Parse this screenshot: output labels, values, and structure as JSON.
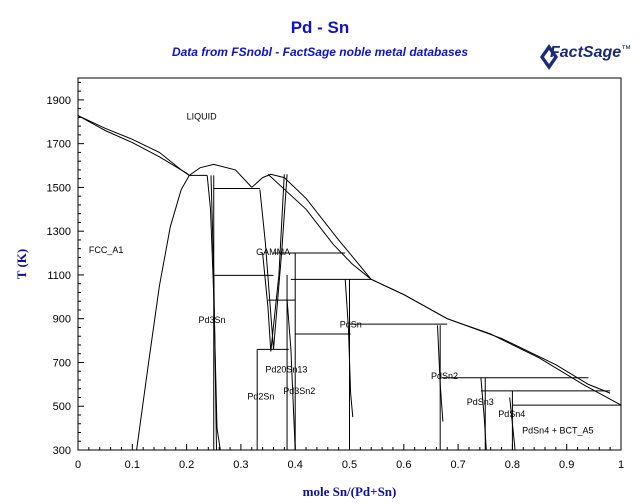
{
  "chart_data": {
    "type": "line",
    "title": "Pd - Sn",
    "subtitle": "Data from FSnobl - FactSage noble metal databases",
    "xlabel": "mole Sn/(Pd+Sn)",
    "ylabel": "T (K)",
    "xlim": [
      0,
      1
    ],
    "ylim": [
      300,
      2000
    ],
    "x_ticks": [
      "0",
      "0.1",
      "0.2",
      "0.3",
      "0.4",
      "0.5",
      "0.6",
      "0.7",
      "0.8",
      "0.9",
      "1"
    ],
    "y_ticks": [
      "300",
      "500",
      "700",
      "900",
      "1100",
      "1300",
      "1500",
      "1700",
      "1900"
    ],
    "grid": false,
    "regions": [
      {
        "label": "LIQUID",
        "x": 0.2,
        "y": 1810
      },
      {
        "label": "FCC_A1",
        "x": 0.02,
        "y": 1200
      },
      {
        "label": "GAMMA",
        "x": 0.328,
        "y": 1190
      },
      {
        "label": "Pd3Sn",
        "x": 0.222,
        "y": 880
      },
      {
        "label": "Pd20Sn13",
        "x": 0.345,
        "y": 655
      },
      {
        "label": "Pd2Sn",
        "x": 0.312,
        "y": 530
      },
      {
        "label": "Pd3Sn2",
        "x": 0.378,
        "y": 555
      },
      {
        "label": "PdSn",
        "x": 0.482,
        "y": 860
      },
      {
        "label": "PdSn2",
        "x": 0.65,
        "y": 625
      },
      {
        "label": "PdSn3",
        "x": 0.716,
        "y": 505
      },
      {
        "label": "PdSn4",
        "x": 0.774,
        "y": 450
      },
      {
        "label": "PdSn4 + BCT_A5",
        "x": 0.818,
        "y": 375
      }
    ],
    "curves": [
      {
        "x": [
          0,
          0.05,
          0.1,
          0.15,
          0.19,
          0.205
        ],
        "y": [
          1828,
          1770,
          1720,
          1660,
          1580,
          1555
        ]
      },
      {
        "x": [
          0,
          0.05,
          0.1,
          0.15,
          0.2,
          0.205
        ],
        "y": [
          1828,
          1760,
          1705,
          1640,
          1565,
          1555
        ]
      },
      {
        "x": [
          0.205,
          0.225,
          0.25,
          0.29,
          0.32
        ],
        "y": [
          1555,
          1590,
          1605,
          1580,
          1500
        ]
      },
      {
        "x": [
          0.32,
          0.34,
          0.355,
          0.38,
          0.42,
          0.48,
          0.54,
          0.6,
          0.68,
          0.76,
          0.85,
          0.93,
          1.0
        ],
        "y": [
          1500,
          1545,
          1560,
          1545,
          1450,
          1260,
          1080,
          1010,
          900,
          830,
          720,
          600,
          505
        ]
      },
      {
        "x": [
          0.108,
          0.13,
          0.15,
          0.17,
          0.19,
          0.205
        ],
        "y": [
          300,
          700,
          1050,
          1320,
          1490,
          1555
        ]
      },
      {
        "x": [
          0.238,
          0.244,
          0.25,
          0.256,
          0.262
        ],
        "y": [
          1555,
          1400,
          1000,
          400,
          300
        ]
      },
      {
        "x": [
          0.245,
          0.25,
          0.255
        ],
        "y": [
          1555,
          1100,
          300
        ]
      },
      {
        "x": [
          0.34,
          0.35,
          0.355,
          0.37,
          0.38
        ],
        "y": [
          1200,
          950,
          750,
          1100,
          1560
        ]
      },
      {
        "x": [
          0.335,
          0.345,
          0.36,
          0.375,
          0.385
        ],
        "y": [
          1490,
          1250,
          760,
          1200,
          1560
        ]
      },
      {
        "x": [
          0.385,
          0.392,
          0.4
        ],
        "y": [
          985,
          760,
          300
        ]
      },
      {
        "x": [
          0.492,
          0.498,
          0.502,
          0.506
        ],
        "y": [
          1080,
          860,
          560,
          450
        ]
      },
      {
        "x": [
          0.662,
          0.667,
          0.672
        ],
        "y": [
          870,
          600,
          430
        ]
      },
      {
        "x": [
          0.742,
          0.748,
          0.752
        ],
        "y": [
          630,
          450,
          300
        ]
      },
      {
        "x": [
          0.795,
          0.8,
          0.805
        ],
        "y": [
          540,
          420,
          300
        ]
      },
      {
        "x": [
          0.35,
          0.42,
          0.47,
          0.505,
          0.54
        ],
        "y": [
          1560,
          1400,
          1240,
          1150,
          1080
        ]
      },
      {
        "x": [
          0.54,
          0.6,
          0.68,
          0.78,
          0.88,
          0.94,
          0.98
        ],
        "y": [
          1080,
          1010,
          900,
          810,
          690,
          600,
          560
        ]
      }
    ],
    "isotherms": [
      {
        "x": [
          0.205,
          0.238
        ],
        "y": 1555
      },
      {
        "x": [
          0.25,
          0.335
        ],
        "y": 1495
      },
      {
        "x": [
          0.25,
          0.36
        ],
        "y": 1098
      },
      {
        "x": [
          0.36,
          0.492
        ],
        "y": 1200
      },
      {
        "x": [
          0.392,
          0.54
        ],
        "y": 1080
      },
      {
        "x": [
          0.35,
          0.4
        ],
        "y": 985
      },
      {
        "x": [
          0.4,
          0.502
        ],
        "y": 830
      },
      {
        "x": [
          0.5,
          0.68
        ],
        "y": 875
      },
      {
        "x": [
          0.33,
          0.388
        ],
        "y": 760
      },
      {
        "x": [
          0.67,
          0.94
        ],
        "y": 630
      },
      {
        "x": [
          0.742,
          0.98
        ],
        "y": 570
      },
      {
        "x": [
          0.8,
          1.0
        ],
        "y": 505
      }
    ],
    "verticals": [
      {
        "x": 0.25,
        "y": [
          300,
          1555
        ]
      },
      {
        "x": 0.33,
        "y": [
          300,
          760
        ]
      },
      {
        "x": 0.385,
        "y": [
          300,
          1100
        ]
      },
      {
        "x": 0.4,
        "y": [
          300,
          1200
        ]
      },
      {
        "x": 0.5,
        "y": [
          300,
          1080
        ]
      },
      {
        "x": 0.667,
        "y": [
          300,
          870
        ]
      },
      {
        "x": 0.75,
        "y": [
          300,
          630
        ]
      },
      {
        "x": 0.8,
        "y": [
          300,
          570
        ]
      }
    ]
  },
  "logo": {
    "name": "factsage-logo",
    "text": "FactSage",
    "sup": "™"
  }
}
